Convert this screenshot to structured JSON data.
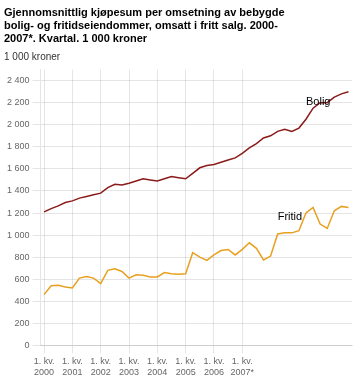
{
  "chart_data": {
    "type": "line",
    "title": "Gjennomsnittlig kjøpesum per omsetning av bebygde\nbolig- og fritidseiendommer, omsatt i fritt salg. 2000-\n2007*. Kvartal. 1 000 kroner",
    "ylabel": "1 000 kroner",
    "categories": [
      "1. kv.\n2000",
      null,
      null,
      null,
      "1. kv.\n2001",
      null,
      null,
      null,
      "1. kv.\n2002",
      null,
      null,
      null,
      "1. kv.\n2003",
      null,
      null,
      null,
      "1. kv.\n2004",
      null,
      null,
      null,
      "1. kv.\n2005",
      null,
      null,
      null,
      "1. kv.\n2006",
      null,
      null,
      null,
      "1. kv.\n2007*",
      null,
      null,
      null,
      null,
      null,
      null,
      null,
      null,
      null,
      null,
      null,
      null,
      null,
      null,
      null
    ],
    "series": [
      {
        "name": "Bolig",
        "color": "#8b1a1a",
        "values": [
          1210,
          1240,
          1265,
          1295,
          1310,
          1335,
          1350,
          1365,
          1380,
          1430,
          1460,
          1455,
          1470,
          1490,
          1510,
          1500,
          1490,
          1510,
          1530,
          1520,
          1510,
          1560,
          1610,
          1630,
          1640,
          1660,
          1680,
          1700,
          1740,
          1790,
          1830,
          1880,
          1900,
          1940,
          1960,
          1940,
          1970,
          2050,
          2150,
          2200,
          2200,
          2250,
          2280,
          2300
        ]
      },
      {
        "name": "Fritid",
        "color": "#e8a020",
        "values": [
          460,
          540,
          545,
          530,
          520,
          610,
          625,
          610,
          560,
          680,
          695,
          670,
          610,
          640,
          635,
          620,
          620,
          660,
          650,
          645,
          650,
          840,
          800,
          770,
          820,
          860,
          870,
          820,
          870,
          930,
          880,
          775,
          810,
          1010,
          1020,
          1020,
          1040,
          1200,
          1250,
          1100,
          1060,
          1220,
          1260,
          1250
        ]
      }
    ],
    "ylim": [
      0,
      2500
    ],
    "yticks": [
      0,
      200,
      400,
      600,
      800,
      {
        "value": 1000,
        "label": "1 000"
      },
      {
        "value": 1200,
        "label": "1 200"
      },
      {
        "value": 1400,
        "label": "1 400"
      },
      {
        "value": 1600,
        "label": "1 600"
      },
      {
        "value": 1800,
        "label": "1 800"
      },
      {
        "value": 2000,
        "label": "2 000"
      },
      {
        "value": 2200,
        "label": "2 200"
      },
      {
        "value": 2400,
        "label": "2 400"
      }
    ],
    "grid": true
  }
}
